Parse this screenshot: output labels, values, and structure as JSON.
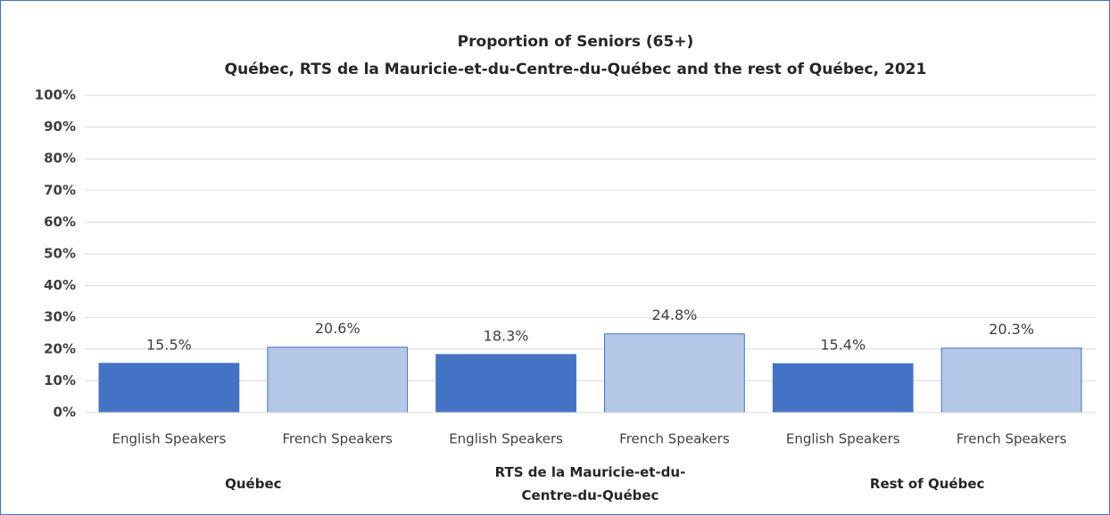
{
  "chart_data": {
    "type": "bar",
    "title": "Proportion of Seniors (65+)",
    "subtitle": "Québec, RTS de la Mauricie-et-du-Centre-du-Québec and the rest of Québec, 2021",
    "categories": [
      "English Speakers",
      "French Speakers",
      "English Speakers",
      "French Speakers",
      "English Speakers",
      "French Speakers"
    ],
    "groups": [
      "Québec",
      "RTS de la Mauricie-et-du-Centre-du-Québec",
      "Rest of Québec"
    ],
    "values": [
      15.5,
      20.6,
      18.3,
      24.8,
      15.4,
      20.3
    ],
    "value_labels": [
      "15.5%",
      "20.6%",
      "18.3%",
      "24.8%",
      "15.4%",
      "20.3%"
    ],
    "colors": [
      "#4472c4",
      "#b4c7e7",
      "#4472c4",
      "#b4c7e7",
      "#4472c4",
      "#b4c7e7"
    ],
    "ylim": [
      0,
      100
    ],
    "yticks": [
      {
        "value": 0,
        "label": "0%"
      },
      {
        "value": 10,
        "label": "10%"
      },
      {
        "value": 20,
        "label": "20%"
      },
      {
        "value": 30,
        "label": "30%"
      },
      {
        "value": 40,
        "label": "40%"
      },
      {
        "value": 50,
        "label": "50%"
      },
      {
        "value": 60,
        "label": "60%"
      },
      {
        "value": 70,
        "label": "70%"
      },
      {
        "value": 80,
        "label": "80%"
      },
      {
        "value": 90,
        "label": "90%"
      },
      {
        "value": 100,
        "label": "100%"
      }
    ],
    "grid": true
  }
}
